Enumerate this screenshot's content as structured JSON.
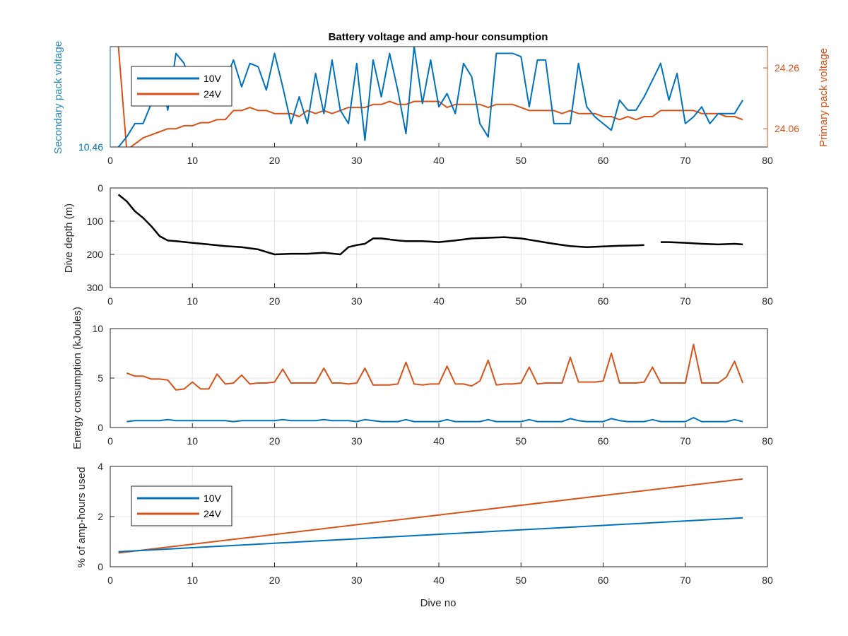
{
  "colors": {
    "series10V": "#0072BD",
    "series24V": "#D95319",
    "depth": "#000000",
    "grid": "#e6e6e6",
    "axis": "#262626"
  },
  "chart_data": [
    {
      "type": "line",
      "title": "Battery voltage and amp-hour consumption",
      "xlabel": "",
      "ylabel_left": "Secondary pack voltage",
      "ylabel_right": "Primary pack voltage",
      "xlim": [
        0,
        80
      ],
      "xticks": [
        "0",
        "10",
        "20",
        "30",
        "40",
        "50",
        "60",
        "70",
        "80"
      ],
      "yticks_left": [
        "10.46"
      ],
      "yticks_right": [
        "24.06",
        "24.26"
      ],
      "grid": false,
      "legend": {
        "position": "top-left",
        "entries": [
          "10V",
          "24V"
        ]
      },
      "x": [
        1,
        2,
        3,
        4,
        5,
        6,
        7,
        8,
        9,
        10,
        11,
        12,
        13,
        14,
        15,
        16,
        17,
        18,
        19,
        20,
        21,
        22,
        23,
        24,
        25,
        26,
        27,
        28,
        29,
        30,
        31,
        32,
        33,
        34,
        35,
        36,
        37,
        38,
        39,
        40,
        41,
        42,
        43,
        44,
        45,
        46,
        47,
        48,
        49,
        50,
        51,
        52,
        53,
        54,
        55,
        56,
        57,
        58,
        59,
        60,
        61,
        62,
        63,
        64,
        65,
        66,
        67,
        68,
        69,
        70,
        71,
        72,
        73,
        74,
        75,
        76,
        77
      ],
      "series": [
        {
          "name": "10V",
          "axis": "left",
          "ylim": [
            10.46,
            10.76
          ],
          "values": [
            10.46,
            10.49,
            10.53,
            10.53,
            10.59,
            10.69,
            10.57,
            10.74,
            10.71,
            10.63,
            10.59,
            10.6,
            10.62,
            10.66,
            10.72,
            10.64,
            10.71,
            10.7,
            10.63,
            10.74,
            10.64,
            10.53,
            10.61,
            10.53,
            10.68,
            10.56,
            10.72,
            10.57,
            10.53,
            10.71,
            10.48,
            10.72,
            10.61,
            10.74,
            10.63,
            10.5,
            10.76,
            10.59,
            10.72,
            10.58,
            10.62,
            10.56,
            10.71,
            10.67,
            10.53,
            10.49,
            10.74,
            10.74,
            10.74,
            10.73,
            10.58,
            10.72,
            10.72,
            10.53,
            10.53,
            10.53,
            10.71,
            10.58,
            10.55,
            10.53,
            10.51,
            10.6,
            10.57,
            10.57,
            10.61,
            10.66,
            10.71,
            10.6,
            10.68,
            10.53,
            10.55,
            10.58,
            10.53,
            10.56,
            10.56,
            10.56,
            10.6
          ]
        },
        {
          "name": "24V",
          "axis": "right",
          "ylim": [
            24.0,
            24.33
          ],
          "values": [
            24.33,
            23.99,
            24.01,
            24.03,
            24.04,
            24.05,
            24.06,
            24.06,
            24.07,
            24.07,
            24.08,
            24.08,
            24.09,
            24.09,
            24.12,
            24.12,
            24.13,
            24.12,
            24.12,
            24.11,
            24.11,
            24.11,
            24.1,
            24.12,
            24.11,
            24.12,
            24.11,
            24.12,
            24.13,
            24.13,
            24.13,
            24.14,
            24.14,
            24.15,
            24.14,
            24.14,
            24.15,
            24.15,
            24.15,
            24.15,
            24.13,
            24.14,
            24.14,
            24.14,
            24.14,
            24.13,
            24.14,
            24.14,
            24.14,
            24.13,
            24.12,
            24.12,
            24.12,
            24.12,
            24.11,
            24.12,
            24.11,
            24.11,
            24.11,
            24.1,
            24.1,
            24.09,
            24.1,
            24.09,
            24.1,
            24.1,
            24.12,
            24.12,
            24.12,
            24.12,
            24.12,
            24.11,
            24.11,
            24.11,
            24.1,
            24.1,
            24.09
          ]
        }
      ]
    },
    {
      "type": "line",
      "title": "",
      "xlabel": "",
      "ylabel": "Dive depth (m)",
      "xlim": [
        0,
        80
      ],
      "ylim": [
        0,
        300
      ],
      "y_reversed": true,
      "xticks": [
        "0",
        "10",
        "20",
        "30",
        "40",
        "50",
        "60",
        "70",
        "80"
      ],
      "yticks": [
        "0",
        "100",
        "200",
        "300"
      ],
      "grid": true,
      "segments": [
        {
          "x": [
            1,
            2,
            3,
            4,
            5,
            6,
            7,
            8,
            10,
            12,
            14,
            16,
            18,
            20,
            22,
            24,
            26,
            28,
            29,
            30,
            31,
            32,
            33,
            34,
            35,
            36,
            38,
            40,
            42,
            44,
            46,
            48,
            50,
            52,
            54,
            56,
            58,
            60,
            62,
            64,
            65
          ],
          "values": [
            20,
            40,
            70,
            90,
            115,
            145,
            158,
            160,
            165,
            170,
            175,
            178,
            185,
            200,
            198,
            198,
            195,
            200,
            178,
            172,
            168,
            152,
            152,
            155,
            158,
            160,
            160,
            163,
            158,
            152,
            150,
            148,
            152,
            160,
            168,
            175,
            178,
            176,
            174,
            173,
            172
          ]
        },
        {
          "x": [
            67,
            68,
            70,
            72,
            74,
            76,
            77
          ],
          "values": [
            163,
            163,
            165,
            168,
            170,
            168,
            170
          ]
        }
      ]
    },
    {
      "type": "line",
      "title": "",
      "xlabel": "",
      "ylabel": "Energy consumption (kJoules)",
      "xlim": [
        0,
        80
      ],
      "ylim": [
        0,
        10
      ],
      "xticks": [
        "0",
        "10",
        "20",
        "30",
        "40",
        "50",
        "60",
        "70",
        "80"
      ],
      "yticks": [
        "0",
        "5",
        "10"
      ],
      "grid": true,
      "x": [
        2,
        3,
        4,
        5,
        6,
        7,
        8,
        9,
        10,
        11,
        12,
        13,
        14,
        15,
        16,
        17,
        18,
        19,
        20,
        21,
        22,
        23,
        24,
        25,
        26,
        27,
        28,
        29,
        30,
        31,
        32,
        33,
        34,
        35,
        36,
        37,
        38,
        39,
        40,
        41,
        42,
        43,
        44,
        45,
        46,
        47,
        48,
        49,
        50,
        51,
        52,
        53,
        54,
        55,
        56,
        57,
        58,
        59,
        60,
        61,
        62,
        63,
        64,
        65,
        66,
        67,
        68,
        69,
        70,
        71,
        72,
        73,
        74,
        75,
        76,
        77
      ],
      "series": [
        {
          "name": "10V",
          "values": [
            0.6,
            0.7,
            0.7,
            0.7,
            0.7,
            0.8,
            0.7,
            0.7,
            0.7,
            0.7,
            0.7,
            0.7,
            0.7,
            0.6,
            0.7,
            0.7,
            0.7,
            0.7,
            0.7,
            0.8,
            0.7,
            0.7,
            0.7,
            0.7,
            0.8,
            0.7,
            0.7,
            0.7,
            0.6,
            0.8,
            0.7,
            0.6,
            0.6,
            0.6,
            0.8,
            0.6,
            0.6,
            0.6,
            0.6,
            0.8,
            0.6,
            0.6,
            0.6,
            0.6,
            0.8,
            0.6,
            0.6,
            0.6,
            0.6,
            0.8,
            0.6,
            0.6,
            0.6,
            0.6,
            0.9,
            0.7,
            0.6,
            0.6,
            0.6,
            0.9,
            0.7,
            0.6,
            0.6,
            0.6,
            0.8,
            0.6,
            0.6,
            0.6,
            0.6,
            1.0,
            0.6,
            0.6,
            0.6,
            0.6,
            0.8,
            0.6
          ]
        },
        {
          "name": "24V",
          "values": [
            5.5,
            5.2,
            5.2,
            4.9,
            4.9,
            4.8,
            3.8,
            3.9,
            4.6,
            3.9,
            3.9,
            5.4,
            4.4,
            4.5,
            5.3,
            4.4,
            4.5,
            4.5,
            4.6,
            5.9,
            4.5,
            4.5,
            4.5,
            4.5,
            6.0,
            4.5,
            4.5,
            4.4,
            4.5,
            6.0,
            4.3,
            4.3,
            4.3,
            4.4,
            6.6,
            4.4,
            4.3,
            4.4,
            4.4,
            6.2,
            4.4,
            4.4,
            4.2,
            4.7,
            6.8,
            4.3,
            4.4,
            4.4,
            4.5,
            6.1,
            4.4,
            4.5,
            4.5,
            4.5,
            7.1,
            4.6,
            4.6,
            4.6,
            4.7,
            7.5,
            4.5,
            4.5,
            4.5,
            4.6,
            6.1,
            4.5,
            4.5,
            4.5,
            4.5,
            8.4,
            4.5,
            4.5,
            4.5,
            5.1,
            6.7,
            4.5
          ]
        }
      ]
    },
    {
      "type": "line",
      "title": "",
      "xlabel": "Dive no",
      "ylabel": "% of amp-hours used",
      "xlim": [
        0,
        80
      ],
      "ylim": [
        0,
        4
      ],
      "xticks": [
        "0",
        "10",
        "20",
        "30",
        "40",
        "50",
        "60",
        "70",
        "80"
      ],
      "yticks": [
        "0",
        "2",
        "4"
      ],
      "grid": true,
      "legend": {
        "position": "top-left",
        "entries": [
          "10V",
          "24V"
        ]
      },
      "x": [
        1,
        77
      ],
      "series": [
        {
          "name": "10V",
          "values": [
            0.6,
            1.95
          ]
        },
        {
          "name": "24V",
          "values": [
            0.55,
            3.5
          ]
        }
      ]
    }
  ]
}
